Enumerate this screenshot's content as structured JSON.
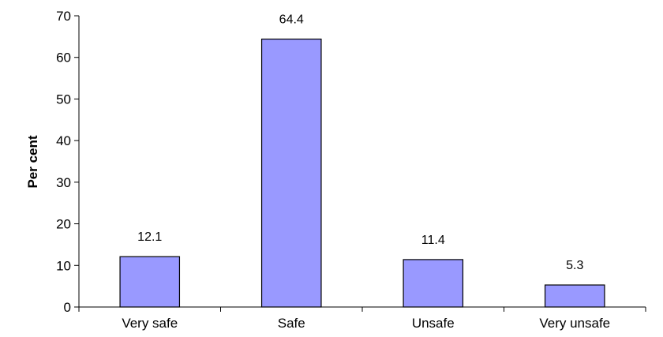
{
  "chart_data": {
    "type": "bar",
    "categories": [
      "Very safe",
      "Safe",
      "Unsafe",
      "Very unsafe"
    ],
    "values": [
      12.1,
      64.4,
      11.4,
      5.3
    ],
    "value_labels": [
      "12.1",
      "64.4",
      "11.4",
      "5.3"
    ],
    "title": "",
    "xlabel": "",
    "ylabel": "Per cent",
    "ylim": [
      0,
      70
    ],
    "yticks": [
      0,
      10,
      20,
      30,
      40,
      50,
      60,
      70
    ],
    "grid": false,
    "legend": "none",
    "colors": {
      "bar_fill": "#9999ff",
      "bar_stroke": "#000000",
      "axis": "#000000"
    }
  }
}
